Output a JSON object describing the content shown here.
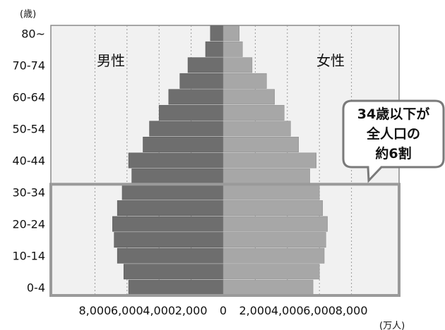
{
  "chart_data": {
    "type": "bar",
    "orientation": "horizontal",
    "layout": "population-pyramid",
    "y_unit_label": "(歳)",
    "x_unit_label": "(万人)",
    "age_groups": [
      "0-4",
      "5-9",
      "10-14",
      "15-19",
      "20-24",
      "25-29",
      "30-34",
      "35-39",
      "40-44",
      "45-49",
      "50-54",
      "55-59",
      "60-64",
      "65-69",
      "70-74",
      "75-79",
      "80~"
    ],
    "age_tick_labels": [
      "0-4",
      "10-14",
      "20-24",
      "30-34",
      "40-44",
      "50-54",
      "60-64",
      "70-74",
      "80~"
    ],
    "x_ticks": [
      "8,000",
      "6,000",
      "4,000",
      "2,000",
      "0",
      "2,000",
      "4,000",
      "6,000",
      "8,000"
    ],
    "xlim": [
      -8000,
      8000
    ],
    "series": [
      {
        "name": "男性",
        "values": [
          5900,
          6200,
          6600,
          6800,
          6900,
          6600,
          6300,
          5700,
          5900,
          5000,
          4600,
          4000,
          3400,
          2700,
          2200,
          1100,
          800
        ]
      },
      {
        "name": "女性",
        "values": [
          5600,
          6000,
          6300,
          6400,
          6500,
          6200,
          6000,
          5400,
          5800,
          4700,
          4200,
          3800,
          3200,
          2700,
          1800,
          1200,
          1000
        ]
      }
    ],
    "highlight": {
      "from_age_group": "0-4",
      "to_age_group": "30-34"
    },
    "annotation": {
      "lines": [
        "34歳以下が",
        "全人口の",
        "約6割"
      ]
    },
    "grid": "vertical-dotted",
    "colors": {
      "male": "#6e6e6e",
      "female": "#a7a7a7",
      "border": "#8a8a8a",
      "highlight_border": "#9a9a9a",
      "background": "#f1f1f1"
    }
  }
}
